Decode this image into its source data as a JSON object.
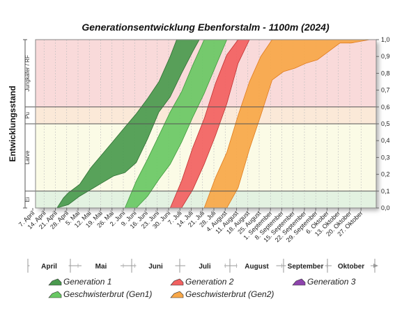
{
  "chart_data": {
    "type": "area",
    "title": "Generationsentwicklung Ebenforstalm - 1100m (2024)",
    "ylabel": "Entwicklungsstand",
    "ylim": [
      0,
      1
    ],
    "y_ticks": [
      "0,0",
      "0,1",
      "0,2",
      "0,3",
      "0,4",
      "0,5",
      "0,6",
      "0,7",
      "0,8",
      "0,9",
      "1,0"
    ],
    "x_ticks": [
      "7. April",
      "14. April",
      "21. April",
      "28. April",
      "5. Mai",
      "12. Mai",
      "19. Mai",
      "26. Mai",
      "2. Juni",
      "9. Juni",
      "16. Juni",
      "23. Juni",
      "30. Juni",
      "7. Juli",
      "14. Juli",
      "21. Juli",
      "28. Juli",
      "4. August",
      "11. August",
      "18. August",
      "25. August",
      "1. September",
      "8. September",
      "15. September",
      "22. September",
      "29. September",
      "6. Oktober",
      "13. Oktober",
      "20. Oktober",
      "27. Oktober"
    ],
    "months": [
      "April",
      "Mai",
      "Juni",
      "Juli",
      "August",
      "September",
      "Oktober"
    ],
    "stages": [
      {
        "label": "Ei",
        "from": 0.0,
        "to": 0.1,
        "color": "#e3f2e1"
      },
      {
        "label": "Larve",
        "from": 0.1,
        "to": 0.5,
        "color": "#fbfbe6"
      },
      {
        "label": "Pu",
        "from": 0.5,
        "to": 0.6,
        "color": "#fbe9d8"
      },
      {
        "label": "Jungkäfer / RF",
        "from": 0.6,
        "to": 1.0,
        "color": "#f9dada"
      }
    ],
    "series": [
      {
        "name": "Generation 1",
        "color": "#4a9a4e",
        "edge": "#2e6f33",
        "upper": [
          [
            21,
            0
          ],
          [
            25,
            0.06
          ],
          [
            28,
            0.09
          ],
          [
            35,
            0.14
          ],
          [
            42,
            0.24
          ],
          [
            49,
            0.32
          ],
          [
            56,
            0.4
          ],
          [
            63,
            0.48
          ],
          [
            70,
            0.56
          ],
          [
            77,
            0.65
          ],
          [
            84,
            0.75
          ],
          [
            91,
            0.9
          ],
          [
            95,
            1.0
          ]
        ],
        "lower": [
          [
            21,
            0
          ],
          [
            28,
            0.02
          ],
          [
            35,
            0.07
          ],
          [
            42,
            0.11
          ],
          [
            49,
            0.15
          ],
          [
            56,
            0.19
          ],
          [
            63,
            0.21
          ],
          [
            70,
            0.27
          ],
          [
            77,
            0.41
          ],
          [
            84,
            0.57
          ],
          [
            91,
            0.66
          ],
          [
            98,
            0.8
          ],
          [
            105,
            0.93
          ],
          [
            109,
            1.0
          ]
        ]
      },
      {
        "name": "Geschwisterbrut (Gen1)",
        "color": "#69c864",
        "edge": "#3f9a3c",
        "upper": [
          [
            63,
            0
          ],
          [
            70,
            0.16
          ],
          [
            77,
            0.29
          ],
          [
            84,
            0.43
          ],
          [
            91,
            0.57
          ],
          [
            98,
            0.69
          ],
          [
            105,
            0.85
          ],
          [
            112,
            1.0
          ]
        ],
        "lower": [
          [
            70,
            0
          ],
          [
            77,
            0.07
          ],
          [
            84,
            0.17
          ],
          [
            91,
            0.26
          ],
          [
            98,
            0.39
          ],
          [
            105,
            0.54
          ],
          [
            112,
            0.68
          ],
          [
            119,
            0.84
          ],
          [
            126,
            1.0
          ]
        ]
      },
      {
        "name": "Generation 2",
        "color": "#f26161",
        "edge": "#c03030",
        "upper": [
          [
            91,
            0
          ],
          [
            98,
            0.16
          ],
          [
            105,
            0.36
          ],
          [
            112,
            0.53
          ],
          [
            119,
            0.74
          ],
          [
            126,
            0.91
          ],
          [
            133,
            1.0
          ]
        ],
        "lower": [
          [
            98,
            0
          ],
          [
            105,
            0.11
          ],
          [
            112,
            0.26
          ],
          [
            119,
            0.43
          ],
          [
            126,
            0.62
          ],
          [
            133,
            0.86
          ],
          [
            140,
            1.0
          ]
        ]
      },
      {
        "name": "Geschwisterbrut (Gen2)",
        "color": "#f7a748",
        "edge": "#e07b1c",
        "upper": [
          [
            112,
            0
          ],
          [
            119,
            0.18
          ],
          [
            126,
            0.33
          ],
          [
            133,
            0.55
          ],
          [
            140,
            0.75
          ],
          [
            147,
            0.9
          ],
          [
            154,
            1.0
          ]
        ],
        "lower": [
          [
            126,
            0
          ],
          [
            133,
            0.12
          ],
          [
            140,
            0.35
          ],
          [
            147,
            0.55
          ],
          [
            154,
            0.76
          ],
          [
            161,
            0.81
          ],
          [
            168,
            0.83
          ],
          [
            175,
            0.86
          ],
          [
            182,
            0.88
          ],
          [
            189,
            0.93
          ],
          [
            196,
            0.98
          ],
          [
            203,
            0.98
          ]
        ]
      },
      {
        "name": "Generation 3",
        "color": "#8e44ad",
        "edge": "#6c2a8a",
        "upper": [],
        "lower": []
      }
    ],
    "legend": [
      {
        "label": "Generation 1",
        "color": "#4a9a4e"
      },
      {
        "label": "Generation 2",
        "color": "#f26161"
      },
      {
        "label": "Generation 3",
        "color": "#8e44ad"
      },
      {
        "label": "Geschwisterbrut (Gen1)",
        "color": "#69c864"
      },
      {
        "label": "Geschwisterbrut (Gen2)",
        "color": "#f7a748"
      }
    ]
  }
}
